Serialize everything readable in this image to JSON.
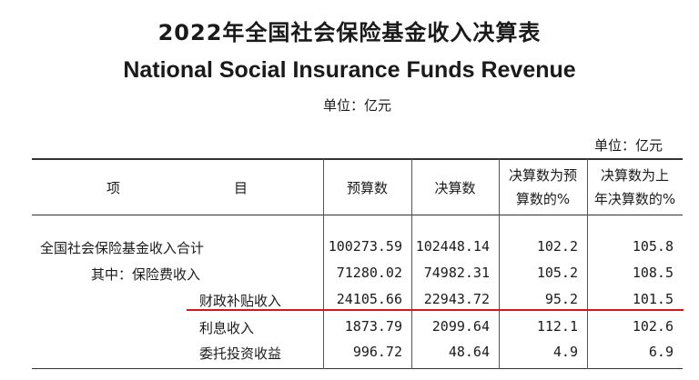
{
  "title_cn": "2022年全国社会保险基金收入决算表",
  "title_en": "National Social Insurance Funds Revenue",
  "unit_top": "单位：亿元",
  "unit_right": "单位：亿元",
  "header": {
    "item_a": "项",
    "item_b": "目",
    "budget": "预算数",
    "final": "决算数",
    "ratio_budget_l1": "决算数为预",
    "ratio_budget_l2": "算数的%",
    "ratio_prev_l1": "决算数为上",
    "ratio_prev_l2": "年决算数的%"
  },
  "rows": [
    {
      "name": "全国社会保险基金收入合计",
      "budget": "100273.59",
      "final": "102448.14",
      "ratio_budget": "102.2",
      "ratio_prev": "105.8"
    },
    {
      "name": "其中：保险费收入",
      "budget": "71280.02",
      "final": "74982.31",
      "ratio_budget": "105.2",
      "ratio_prev": "108.5"
    },
    {
      "name": "财政补贴收入",
      "budget": "24105.66",
      "final": "22943.72",
      "ratio_budget": "95.2",
      "ratio_prev": "101.5"
    },
    {
      "name": "利息收入",
      "budget": "1873.79",
      "final": "2099.64",
      "ratio_budget": "112.1",
      "ratio_prev": "102.6"
    },
    {
      "name": "委托投资收益",
      "budget": "996.72",
      "final": "48.64",
      "ratio_budget": "4.9",
      "ratio_prev": "6.9"
    }
  ],
  "colors": {
    "highlight": "#d8141c",
    "text": "#1a1a1a"
  }
}
